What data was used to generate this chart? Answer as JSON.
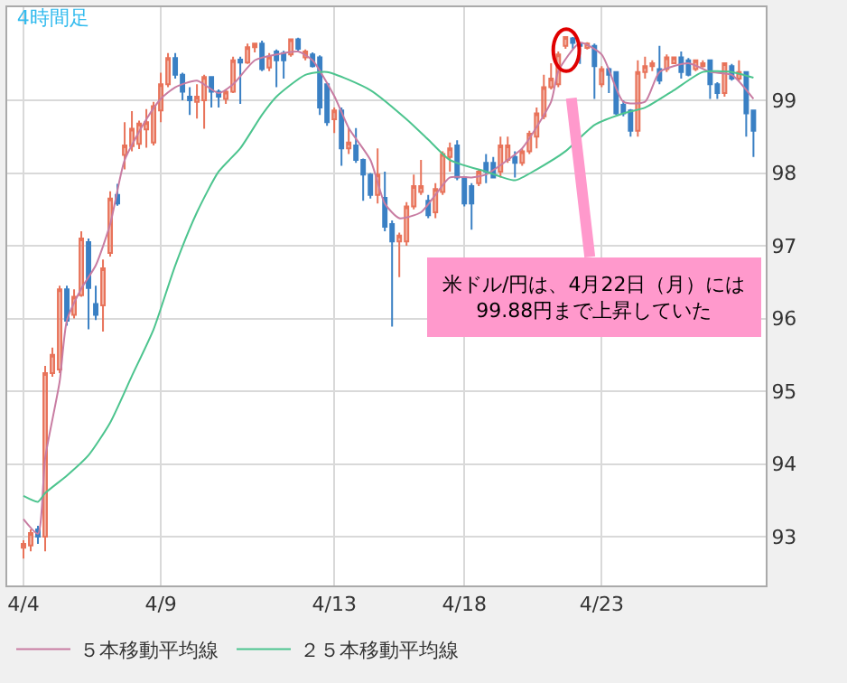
{
  "chart_data": {
    "type": "candlestick",
    "title": "4時間足",
    "categories": [
      "4/4",
      null,
      null,
      null,
      null,
      null,
      null,
      null,
      null,
      null,
      null,
      null,
      null,
      null,
      null,
      null,
      null,
      null,
      null,
      "4/9",
      null,
      null,
      null,
      null,
      null,
      null,
      null,
      null,
      null,
      null,
      null,
      null,
      null,
      null,
      null,
      null,
      null,
      null,
      null,
      null,
      null,
      null,
      null,
      "4/13",
      null,
      null,
      null,
      null,
      null,
      null,
      null,
      null,
      null,
      null,
      null,
      null,
      null,
      null,
      null,
      null,
      null,
      "4/18",
      null,
      null,
      null,
      null,
      null,
      null,
      null,
      null,
      null,
      null,
      null,
      null,
      null,
      null,
      null,
      null,
      null,
      null,
      "4/23",
      null,
      null,
      null,
      null,
      null,
      null,
      null,
      null,
      null,
      null,
      null,
      null,
      null,
      null,
      null,
      null,
      null,
      null,
      null,
      null,
      null
    ],
    "ohlc": [
      [
        92.85,
        92.95,
        92.7,
        92.9
      ],
      [
        92.88,
        93.1,
        92.8,
        93.05
      ],
      [
        93.1,
        93.15,
        92.9,
        93.0
      ],
      [
        93.0,
        95.35,
        92.8,
        95.25
      ],
      [
        95.25,
        95.6,
        95.2,
        95.5
      ],
      [
        95.3,
        96.45,
        95.25,
        96.4
      ],
      [
        96.4,
        96.45,
        95.9,
        95.97
      ],
      [
        96.05,
        96.4,
        96.0,
        96.3
      ],
      [
        96.32,
        97.2,
        96.3,
        97.1
      ],
      [
        97.05,
        97.1,
        95.85,
        96.42
      ],
      [
        96.2,
        96.45,
        95.98,
        96.05
      ],
      [
        96.18,
        96.81,
        95.82,
        96.69
      ],
      [
        96.9,
        97.75,
        96.85,
        97.65
      ],
      [
        97.7,
        97.85,
        97.55,
        97.58
      ],
      [
        98.25,
        98.7,
        98.05,
        98.38
      ],
      [
        98.37,
        98.85,
        98.3,
        98.61
      ],
      [
        98.4,
        98.72,
        98.33,
        98.68
      ],
      [
        98.6,
        98.88,
        98.35,
        98.7
      ],
      [
        98.42,
        98.98,
        98.38,
        98.92
      ],
      [
        98.86,
        99.38,
        98.7,
        99.22
      ],
      [
        99.22,
        99.65,
        99.18,
        99.58
      ],
      [
        99.58,
        99.65,
        99.3,
        99.35
      ],
      [
        99.35,
        99.38,
        99.0,
        99.12
      ],
      [
        99.05,
        99.18,
        98.8,
        99.0
      ],
      [
        98.98,
        99.22,
        98.75,
        99.05
      ],
      [
        99.0,
        99.35,
        98.61,
        99.32
      ],
      [
        99.32,
        99.32,
        98.9,
        99.12
      ],
      [
        99.12,
        99.15,
        98.9,
        99.05
      ],
      [
        99.02,
        99.15,
        98.95,
        99.12
      ],
      [
        99.12,
        99.6,
        99.1,
        99.55
      ],
      [
        99.56,
        99.6,
        98.95,
        99.52
      ],
      [
        99.52,
        99.78,
        99.5,
        99.73
      ],
      [
        99.73,
        99.78,
        99.66,
        99.78
      ],
      [
        99.78,
        99.82,
        99.4,
        99.43
      ],
      [
        99.45,
        99.65,
        99.4,
        99.6
      ],
      [
        99.67,
        99.7,
        99.18,
        99.55
      ],
      [
        99.65,
        99.68,
        99.3,
        99.55
      ],
      [
        99.63,
        99.85,
        99.6,
        99.84
      ],
      [
        99.84,
        99.86,
        99.68,
        99.71
      ],
      [
        99.59,
        99.7,
        99.55,
        99.67
      ],
      [
        99.63,
        99.66,
        99.45,
        99.47
      ],
      [
        99.59,
        99.62,
        98.8,
        98.9
      ],
      [
        99.22,
        99.25,
        98.65,
        98.7
      ],
      [
        98.74,
        98.9,
        98.55,
        98.86
      ],
      [
        98.86,
        98.9,
        98.1,
        98.34
      ],
      [
        98.34,
        98.62,
        98.26,
        98.42
      ],
      [
        98.38,
        98.62,
        98.14,
        98.18
      ],
      [
        98.18,
        98.2,
        97.62,
        97.98
      ],
      [
        97.98,
        98.0,
        97.65,
        97.7
      ],
      [
        97.7,
        98.34,
        97.58,
        97.98
      ],
      [
        97.66,
        98.02,
        97.2,
        97.26
      ],
      [
        97.3,
        97.35,
        95.89,
        97.06
      ],
      [
        97.06,
        97.18,
        96.57,
        97.14
      ],
      [
        97.06,
        97.6,
        97.0,
        97.54
      ],
      [
        97.54,
        97.98,
        97.5,
        97.82
      ],
      [
        97.74,
        98.18,
        97.7,
        97.82
      ],
      [
        97.62,
        97.7,
        97.38,
        97.42
      ],
      [
        97.46,
        97.86,
        97.38,
        97.78
      ],
      [
        97.74,
        98.3,
        97.7,
        98.26
      ],
      [
        98.22,
        98.42,
        98.02,
        98.34
      ],
      [
        98.38,
        98.45,
        97.9,
        97.94
      ],
      [
        97.94,
        97.94,
        97.54,
        97.58
      ],
      [
        97.82,
        97.86,
        97.22,
        97.58
      ],
      [
        97.86,
        98.05,
        97.82,
        98.02
      ],
      [
        98.14,
        98.26,
        97.86,
        98.02
      ],
      [
        98.14,
        98.22,
        97.94,
        97.94
      ],
      [
        98.02,
        98.5,
        97.94,
        98.38
      ],
      [
        98.18,
        98.5,
        98.14,
        98.38
      ],
      [
        98.22,
        98.3,
        97.94,
        98.14
      ],
      [
        98.14,
        98.34,
        98.1,
        98.3
      ],
      [
        98.3,
        98.58,
        98.26,
        98.54
      ],
      [
        98.5,
        98.9,
        98.34,
        98.82
      ],
      [
        98.78,
        99.35,
        98.74,
        99.18
      ],
      [
        99.18,
        99.51,
        99.15,
        99.3
      ],
      [
        99.22,
        99.67,
        99.18,
        99.63
      ],
      [
        99.75,
        99.88,
        99.71,
        99.87
      ],
      [
        99.85,
        99.87,
        99.71,
        99.79
      ],
      [
        99.78,
        99.8,
        99.5,
        99.75
      ],
      [
        99.72,
        99.8,
        99.7,
        99.78
      ],
      [
        99.75,
        99.78,
        99.02,
        99.47
      ],
      [
        99.22,
        99.47,
        99.18,
        99.43
      ],
      [
        99.43,
        99.45,
        99.1,
        99.35
      ],
      [
        99.39,
        99.4,
        98.8,
        98.82
      ],
      [
        98.94,
        99.0,
        98.78,
        98.82
      ],
      [
        98.86,
        98.88,
        98.5,
        98.58
      ],
      [
        98.58,
        99.55,
        98.5,
        99.39
      ],
      [
        99.39,
        99.6,
        99.3,
        99.47
      ],
      [
        99.47,
        99.55,
        99.4,
        99.51
      ],
      [
        99.43,
        99.75,
        99.22,
        99.27
      ],
      [
        99.43,
        99.63,
        99.39,
        99.59
      ],
      [
        99.51,
        99.59,
        99.5,
        99.59
      ],
      [
        99.59,
        99.67,
        99.3,
        99.39
      ],
      [
        99.55,
        99.58,
        99.33,
        99.35
      ],
      [
        99.43,
        99.55,
        99.4,
        99.55
      ],
      [
        99.47,
        99.55,
        99.45,
        99.51
      ],
      [
        99.55,
        99.56,
        99.02,
        99.22
      ],
      [
        99.22,
        99.25,
        99.02,
        99.1
      ],
      [
        99.1,
        99.51,
        99.05,
        99.51
      ],
      [
        99.47,
        99.5,
        99.27,
        99.3
      ],
      [
        99.3,
        99.55,
        99.26,
        99.39
      ],
      [
        99.39,
        99.39,
        98.5,
        98.82
      ],
      [
        98.86,
        98.86,
        98.22,
        98.58
      ]
    ],
    "colors": [
      "#e8735a",
      "#e8735a",
      "#3a80c4",
      "#e8735a",
      "#e8735a",
      "#e8735a",
      "#3a80c4",
      "#e8735a",
      "#e8735a",
      "#3a80c4",
      "#3a80c4",
      "#e8735a",
      "#e8735a",
      "#3a80c4",
      "#e8735a",
      "#e8735a",
      "#e8735a",
      "#e8735a",
      "#e8735a",
      "#e8735a",
      "#e8735a",
      "#3a80c4",
      "#3a80c4",
      "#3a80c4",
      "#e8735a",
      "#e8735a",
      "#3a80c4",
      "#3a80c4",
      "#e8735a",
      "#e8735a",
      "#3a80c4",
      "#e8735a",
      "#e8735a",
      "#3a80c4",
      "#e8735a",
      "#3a80c4",
      "#3a80c4",
      "#e8735a",
      "#3a80c4",
      "#e8735a",
      "#3a80c4",
      "#3a80c4",
      "#3a80c4",
      "#e8735a",
      "#3a80c4",
      "#e8735a",
      "#3a80c4",
      "#3a80c4",
      "#3a80c4",
      "#e8735a",
      "#3a80c4",
      "#3a80c4",
      "#e8735a",
      "#e8735a",
      "#e8735a",
      "#e8735a",
      "#3a80c4",
      "#e8735a",
      "#e8735a",
      "#e8735a",
      "#3a80c4",
      "#3a80c4",
      "#3a80c4",
      "#e8735a",
      "#3a80c4",
      "#3a80c4",
      "#e8735a",
      "#e8735a",
      "#3a80c4",
      "#e8735a",
      "#e8735a",
      "#e8735a",
      "#e8735a",
      "#e8735a",
      "#e8735a",
      "#e8735a",
      "#3a80c4",
      "#3a80c4",
      "#e8735a",
      "#3a80c4",
      "#e8735a",
      "#3a80c4",
      "#3a80c4",
      "#3a80c4",
      "#3a80c4",
      "#e8735a",
      "#e8735a",
      "#e8735a",
      "#3a80c4",
      "#e8735a",
      "#e8735a",
      "#3a80c4",
      "#3a80c4",
      "#e8735a",
      "#e8735a",
      "#3a80c4",
      "#3a80c4",
      "#e8735a",
      "#3a80c4",
      "#e8735a",
      "#3a80c4",
      "#3a80c4"
    ],
    "series": [
      {
        "type": "line",
        "name": "５本移動平均線",
        "color": "#c87ca2",
        "values": [
          93.24,
          null,
          93.04,
          94.08,
          null,
          95.13,
          95.97,
          null,
          96.41,
          null,
          96.73,
          null,
          97.3,
          null,
          98.18,
          null,
          null,
          98.74,
          null,
          99.02,
          null,
          99.18,
          null,
          null,
          99.27,
          null,
          null,
          99.1,
          null,
          99.22,
          null,
          null,
          99.55,
          null,
          null,
          99.63,
          null,
          null,
          99.67,
          null,
          99.55,
          null,
          null,
          99.06,
          null,
          98.62,
          null,
          null,
          98.18,
          null,
          97.58,
          null,
          97.38,
          null,
          null,
          97.46,
          null,
          97.7,
          null,
          97.94,
          null,
          null,
          97.94,
          null,
          97.98,
          null,
          null,
          98.18,
          null,
          98.34,
          null,
          null,
          null,
          98.98,
          99.4,
          null,
          null,
          99.79,
          null,
          null,
          99.63,
          null,
          null,
          98.98,
          null,
          null,
          98.98,
          null,
          99.39,
          null,
          null,
          null,
          99.51,
          null,
          null,
          99.39,
          null,
          null,
          99.35,
          null,
          null,
          99.02
        ]
      },
      {
        "type": "line",
        "name": "２５本移動平均線",
        "color": "#4cc48e",
        "values": [
          93.56,
          null,
          93.48,
          93.6,
          null,
          null,
          93.84,
          null,
          null,
          94.12,
          null,
          null,
          94.57,
          null,
          null,
          95.21,
          null,
          null,
          95.85,
          null,
          null,
          96.73,
          null,
          null,
          97.46,
          null,
          null,
          98.02,
          null,
          null,
          98.34,
          null,
          null,
          98.8,
          null,
          99.05,
          null,
          null,
          null,
          99.35,
          null,
          null,
          99.39,
          null,
          null,
          null,
          null,
          null,
          99.14,
          null,
          null,
          null,
          null,
          98.74,
          null,
          null,
          98.46,
          null,
          null,
          98.18,
          null,
          null,
          null,
          null,
          98.02,
          null,
          null,
          null,
          97.9,
          null,
          null,
          98.05,
          null,
          null,
          null,
          98.3,
          null,
          null,
          null,
          98.66,
          null,
          null,
          null,
          98.82,
          null,
          null,
          98.9,
          null,
          null,
          null,
          99.14,
          null,
          null,
          null,
          99.39,
          null,
          null,
          null,
          99.39,
          null,
          null,
          99.31
        ]
      }
    ],
    "ylim": [
      92.33,
      100.28
    ],
    "yticks": [
      93,
      94,
      95,
      96,
      97,
      98,
      99
    ],
    "grid": true,
    "legend": "bottom",
    "annotations": [
      "米ドル/円は、4月22日（月）には\n99.88円まで上昇していた"
    ]
  }
}
